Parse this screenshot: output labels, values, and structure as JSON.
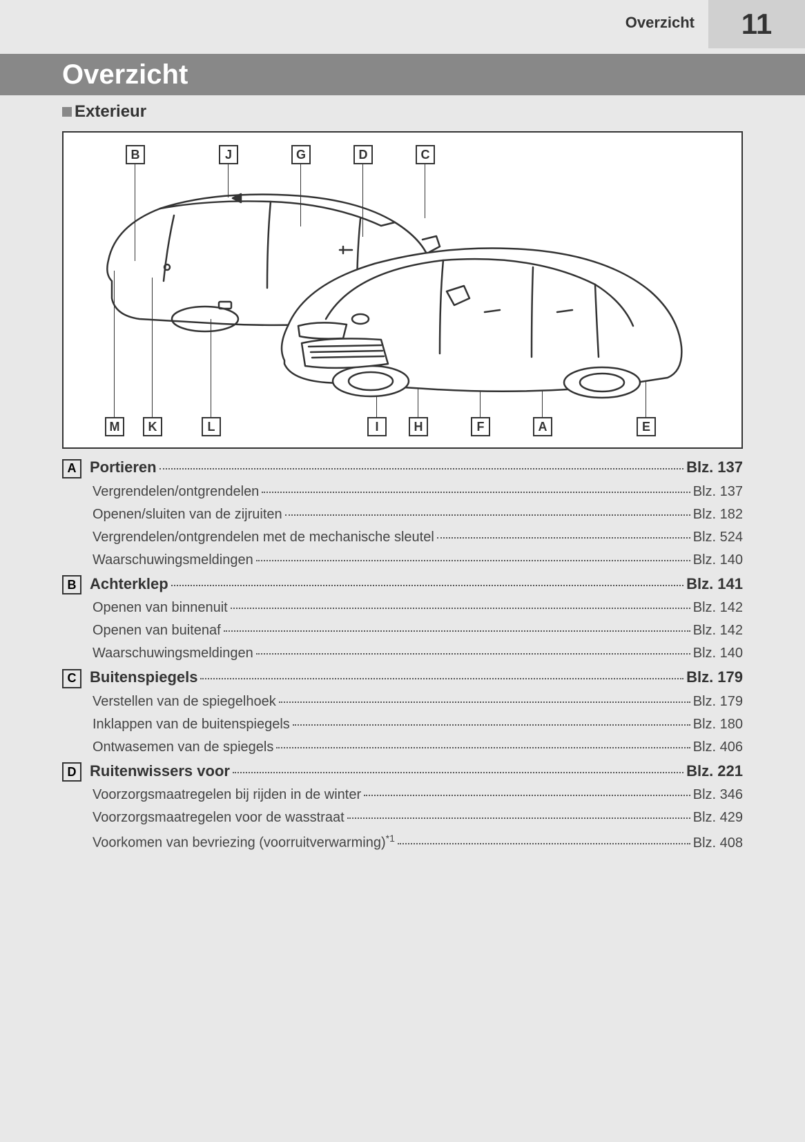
{
  "header": {
    "section": "Overzicht",
    "page_number": "11"
  },
  "title": "Overzicht",
  "subsection": "Exterieur",
  "callouts_top": [
    "B",
    "J",
    "G",
    "D",
    "C"
  ],
  "callouts_bottom": [
    "M",
    "K",
    "L",
    "I",
    "H",
    "F",
    "A",
    "E"
  ],
  "page_prefix": "Blz.",
  "diagram": {
    "stroke_color": "#333333",
    "background": "#ffffff"
  },
  "index": [
    {
      "letter": "A",
      "title": "Portieren",
      "page": "137",
      "subs": [
        {
          "label": "Vergrendelen/ontgrendelen",
          "page": "137"
        },
        {
          "label": "Openen/sluiten van de zijruiten",
          "page": "182"
        },
        {
          "label": "Vergrendelen/ontgrendelen met de mechanische sleutel",
          "page": "524"
        },
        {
          "label": "Waarschuwingsmeldingen",
          "page": "140"
        }
      ]
    },
    {
      "letter": "B",
      "title": "Achterklep",
      "page": "141",
      "subs": [
        {
          "label": "Openen van binnenuit",
          "page": "142"
        },
        {
          "label": "Openen van buitenaf",
          "page": "142"
        },
        {
          "label": "Waarschuwingsmeldingen",
          "page": "140"
        }
      ]
    },
    {
      "letter": "C",
      "title": "Buitenspiegels",
      "page": "179",
      "subs": [
        {
          "label": "Verstellen van de spiegelhoek",
          "page": "179"
        },
        {
          "label": "Inklappen van de buitenspiegels",
          "page": "180"
        },
        {
          "label": "Ontwasemen van de spiegels",
          "page": "406"
        }
      ]
    },
    {
      "letter": "D",
      "title": "Ruitenwissers voor",
      "page": "221",
      "subs": [
        {
          "label": "Voorzorgsmaatregelen bij rijden in de winter",
          "page": "346"
        },
        {
          "label": "Voorzorgsmaatregelen voor de wasstraat",
          "page": "429"
        },
        {
          "label": "Voorkomen van bevriezing (voorruitverwarming)",
          "sup": "*1",
          "page": "408"
        }
      ]
    }
  ]
}
